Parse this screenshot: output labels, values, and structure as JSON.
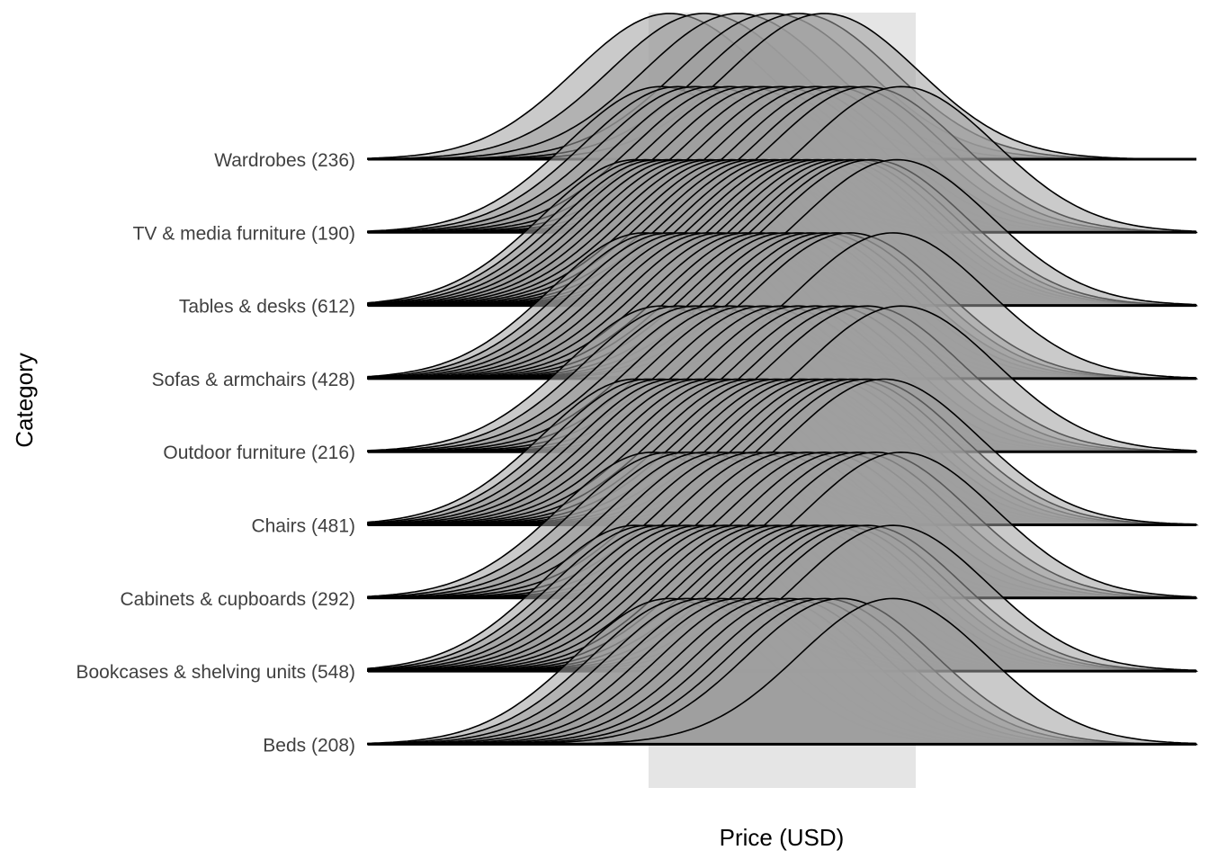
{
  "chart_data": {
    "type": "ridgeline",
    "title": "",
    "xlabel": "Price (USD)",
    "ylabel": "Category",
    "x_tick_labels": [],
    "categories": [
      "Beds (208)",
      "Bookcases & shelving units (548)",
      "Cabinets & cupboards (292)",
      "Chairs (481)",
      "Outdoor furniture (216)",
      "Sofas & armchairs (428)",
      "Tables & desks (612)",
      "TV & media furniture (190)",
      "Wardrobes (236)"
    ],
    "series": [
      {
        "category": "Beds (208)",
        "peak_positions": [
          0.2,
          0.24,
          0.28,
          0.32,
          0.36,
          0.4,
          0.44,
          0.48,
          0.52,
          0.56,
          0.6,
          0.72
        ]
      },
      {
        "category": "Bookcases & shelving units (548)",
        "peak_positions": [
          0.12,
          0.15,
          0.18,
          0.21,
          0.24,
          0.27,
          0.3,
          0.33,
          0.36,
          0.39,
          0.42,
          0.45,
          0.48,
          0.51,
          0.54,
          0.57,
          0.6,
          0.63,
          0.66,
          0.72
        ]
      },
      {
        "category": "Cabinets & cupboards (292)",
        "peak_positions": [
          0.16,
          0.2,
          0.24,
          0.28,
          0.32,
          0.36,
          0.4,
          0.44,
          0.48,
          0.52,
          0.56,
          0.6,
          0.64,
          0.68,
          0.74
        ]
      },
      {
        "category": "Chairs (481)",
        "peak_positions": [
          0.12,
          0.15,
          0.18,
          0.21,
          0.24,
          0.27,
          0.3,
          0.33,
          0.36,
          0.39,
          0.42,
          0.45,
          0.48,
          0.51,
          0.54,
          0.57,
          0.6,
          0.63,
          0.66,
          0.7
        ]
      },
      {
        "category": "Outdoor furniture (216)",
        "peak_positions": [
          0.18,
          0.22,
          0.26,
          0.3,
          0.34,
          0.38,
          0.42,
          0.46,
          0.5,
          0.54,
          0.58,
          0.62,
          0.66,
          0.74
        ]
      },
      {
        "category": "Sofas & armchairs (428)",
        "peak_positions": [
          0.14,
          0.17,
          0.2,
          0.23,
          0.26,
          0.29,
          0.32,
          0.35,
          0.38,
          0.41,
          0.44,
          0.47,
          0.5,
          0.53,
          0.56,
          0.59,
          0.62,
          0.72
        ]
      },
      {
        "category": "Tables & desks (612)",
        "peak_positions": [
          0.12,
          0.145,
          0.17,
          0.195,
          0.22,
          0.245,
          0.27,
          0.295,
          0.32,
          0.345,
          0.37,
          0.395,
          0.42,
          0.445,
          0.47,
          0.495,
          0.52,
          0.545,
          0.57,
          0.595,
          0.62,
          0.645,
          0.67,
          0.73
        ]
      },
      {
        "category": "TV & media furniture (190)",
        "peak_positions": [
          0.18,
          0.22,
          0.26,
          0.3,
          0.34,
          0.38,
          0.42,
          0.46,
          0.5,
          0.54,
          0.58,
          0.62,
          0.66,
          0.74
        ]
      },
      {
        "category": "Wardrobes (236)",
        "peak_positions": [
          0.2,
          0.28,
          0.36,
          0.44,
          0.5,
          0.56
        ]
      }
    ],
    "grid": false,
    "legend": "none",
    "colors": {
      "ridge_fill": "#9e9e9e",
      "ridge_stroke": "#000000",
      "panel_band": "#e5e5e5",
      "axis_text": "#333333",
      "tick_label": "#404040"
    }
  }
}
